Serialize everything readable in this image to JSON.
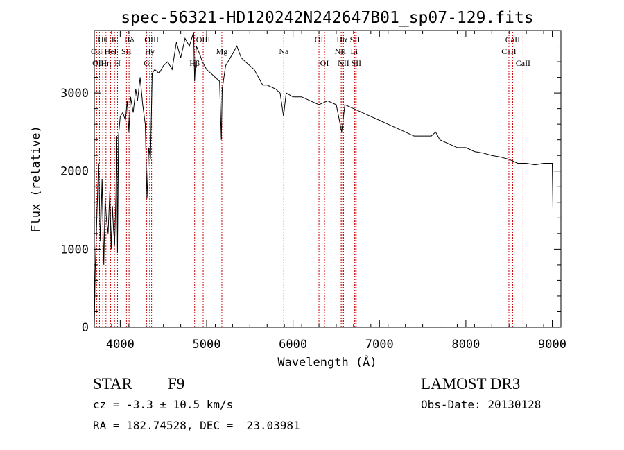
{
  "chart_data": {
    "type": "line",
    "title": "spec-56321-HD120242N242647B01_sp07-129.fits",
    "xlabel": "Wavelength (Å)",
    "ylabel": "Flux (relative)",
    "xlim": [
      3700,
      9100
    ],
    "ylim": [
      0,
      3800
    ],
    "x_ticks": [
      4000,
      5000,
      6000,
      7000,
      8000,
      9000
    ],
    "y_ticks": [
      0,
      1000,
      2000,
      3000
    ],
    "grid": false,
    "series": [
      {
        "name": "flux",
        "points": [
          [
            3700,
            0
          ],
          [
            3710,
            700
          ],
          [
            3725,
            1250
          ],
          [
            3740,
            1800
          ],
          [
            3750,
            2100
          ],
          [
            3760,
            1600
          ],
          [
            3770,
            1100
          ],
          [
            3780,
            1500
          ],
          [
            3790,
            1900
          ],
          [
            3800,
            1300
          ],
          [
            3810,
            800
          ],
          [
            3825,
            1650
          ],
          [
            3840,
            1400
          ],
          [
            3860,
            1200
          ],
          [
            3880,
            1750
          ],
          [
            3895,
            1000
          ],
          [
            3910,
            1550
          ],
          [
            3920,
            1300
          ],
          [
            3935,
            1050
          ],
          [
            3950,
            1700
          ],
          [
            3960,
            2450
          ],
          [
            3968,
            950
          ],
          [
            3980,
            2450
          ],
          [
            4000,
            2700
          ],
          [
            4030,
            2750
          ],
          [
            4060,
            2650
          ],
          [
            4080,
            2900
          ],
          [
            4100,
            2500
          ],
          [
            4120,
            2950
          ],
          [
            4150,
            2750
          ],
          [
            4180,
            3050
          ],
          [
            4200,
            2900
          ],
          [
            4230,
            3200
          ],
          [
            4260,
            2850
          ],
          [
            4290,
            2600
          ],
          [
            4310,
            1650
          ],
          [
            4330,
            2300
          ],
          [
            4350,
            2150
          ],
          [
            4370,
            3250
          ],
          [
            4400,
            3300
          ],
          [
            4450,
            3250
          ],
          [
            4500,
            3350
          ],
          [
            4550,
            3400
          ],
          [
            4600,
            3300
          ],
          [
            4650,
            3650
          ],
          [
            4700,
            3450
          ],
          [
            4750,
            3700
          ],
          [
            4800,
            3600
          ],
          [
            4850,
            3780
          ],
          [
            4861,
            3150
          ],
          [
            4880,
            3600
          ],
          [
            4920,
            3500
          ],
          [
            4950,
            3400
          ],
          [
            5000,
            3300
          ],
          [
            5050,
            3250
          ],
          [
            5100,
            3200
          ],
          [
            5150,
            3150
          ],
          [
            5170,
            2400
          ],
          [
            5180,
            3050
          ],
          [
            5220,
            3350
          ],
          [
            5300,
            3500
          ],
          [
            5350,
            3600
          ],
          [
            5400,
            3450
          ],
          [
            5450,
            3400
          ],
          [
            5500,
            3350
          ],
          [
            5550,
            3300
          ],
          [
            5600,
            3200
          ],
          [
            5650,
            3100
          ],
          [
            5700,
            3100
          ],
          [
            5800,
            3050
          ],
          [
            5850,
            3000
          ],
          [
            5890,
            2700
          ],
          [
            5920,
            3000
          ],
          [
            6000,
            2950
          ],
          [
            6100,
            2950
          ],
          [
            6200,
            2900
          ],
          [
            6300,
            2850
          ],
          [
            6400,
            2900
          ],
          [
            6500,
            2850
          ],
          [
            6563,
            2500
          ],
          [
            6600,
            2850
          ],
          [
            6700,
            2800
          ],
          [
            6800,
            2750
          ],
          [
            6900,
            2700
          ],
          [
            7000,
            2650
          ],
          [
            7100,
            2600
          ],
          [
            7200,
            2550
          ],
          [
            7300,
            2500
          ],
          [
            7400,
            2450
          ],
          [
            7500,
            2450
          ],
          [
            7600,
            2450
          ],
          [
            7650,
            2500
          ],
          [
            7700,
            2400
          ],
          [
            7800,
            2350
          ],
          [
            7900,
            2300
          ],
          [
            8000,
            2300
          ],
          [
            8100,
            2250
          ],
          [
            8200,
            2230
          ],
          [
            8300,
            2200
          ],
          [
            8400,
            2180
          ],
          [
            8500,
            2150
          ],
          [
            8600,
            2100
          ],
          [
            8700,
            2100
          ],
          [
            8800,
            2080
          ],
          [
            8900,
            2100
          ],
          [
            9000,
            2100
          ],
          [
            9008,
            1500
          ]
        ]
      }
    ],
    "lines": [
      {
        "label": "Hθ",
        "x": 3798,
        "row": 1
      },
      {
        "label": "K",
        "x": 3934,
        "row": 1
      },
      {
        "label": "Hδ",
        "x": 4102,
        "row": 1
      },
      {
        "label": "OII",
        "x": 3727,
        "row": 2
      },
      {
        "label": "HeI",
        "x": 3889,
        "row": 2
      },
      {
        "label": "SII",
        "x": 4072,
        "row": 2
      },
      {
        "label": "OIII",
        "x": 3760,
        "row": 3
      },
      {
        "label": "Hη",
        "x": 3835,
        "row": 3
      },
      {
        "label": "H",
        "x": 3969,
        "row": 3
      },
      {
        "label": "OIII",
        "x": 4363,
        "row": 1
      },
      {
        "label": "Hγ",
        "x": 4341,
        "row": 2
      },
      {
        "label": "G",
        "x": 4305,
        "row": 3
      },
      {
        "label": "OIII",
        "x": 4960,
        "row": 1
      },
      {
        "label": "Mg",
        "x": 5176,
        "row": 2
      },
      {
        "label": "Hβ",
        "x": 4861,
        "row": 3
      },
      {
        "label": "Na",
        "x": 5893,
        "row": 2
      },
      {
        "label": "OI",
        "x": 6300,
        "row": 1
      },
      {
        "label": "OI",
        "x": 6364,
        "row": 3
      },
      {
        "label": "Hα",
        "x": 6563,
        "row": 1
      },
      {
        "label": "SII",
        "x": 6717,
        "row": 1
      },
      {
        "label": "NII",
        "x": 6548,
        "row": 2
      },
      {
        "label": "Li",
        "x": 6708,
        "row": 2
      },
      {
        "label": "NII",
        "x": 6584,
        "row": 3
      },
      {
        "label": "SII",
        "x": 6731,
        "row": 3
      },
      {
        "label": "CaII",
        "x": 8542,
        "row": 1
      },
      {
        "label": "CaII",
        "x": 8498,
        "row": 2
      },
      {
        "label": "CaII",
        "x": 8662,
        "row": 3
      }
    ]
  },
  "info": {
    "class": "STAR",
    "subclass": "F9",
    "survey": "LAMOST DR3",
    "cz": "cz = -3.3 ± 10.5 km/s",
    "obs_date": "Obs-Date: 20130128",
    "coords": "RA = 182.74528, DEC =  23.03981"
  }
}
